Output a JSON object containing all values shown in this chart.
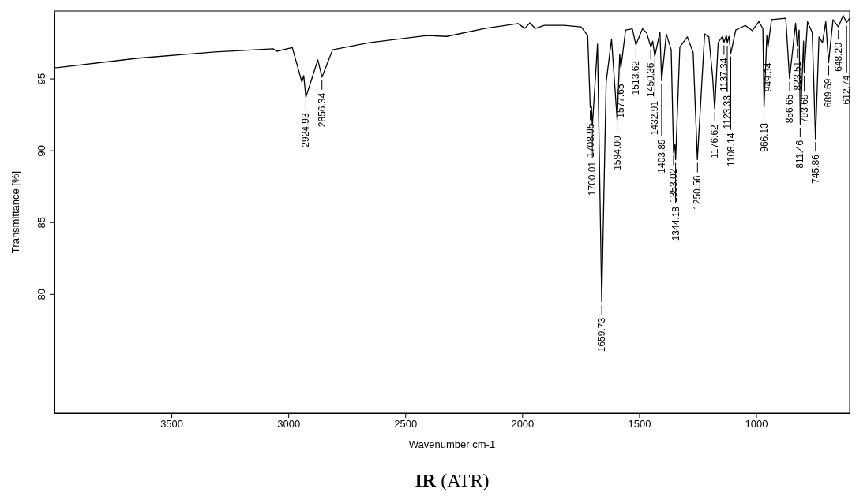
{
  "chart_data": {
    "type": "line",
    "title": "IR (ATR)",
    "xlabel": "Wavenumber cm-1",
    "ylabel": "Transmittance [%]",
    "xlim": [
      4000,
      600
    ],
    "ylim": [
      71.7,
      99.7
    ],
    "xticks": [
      3500,
      3000,
      2500,
      2000,
      1500,
      1000
    ],
    "yticks": [
      80,
      85,
      90,
      95
    ],
    "grid": false,
    "series": [
      {
        "color": "#000000",
        "x": [
          4000,
          3984,
          3642,
          3314,
          3065,
          3050,
          2983,
          2942,
          2934,
          2925,
          2874,
          2856,
          2811,
          2654,
          2406,
          2323,
          2160,
          2018,
          1989,
          1967,
          1944,
          1905,
          1822,
          1748,
          1720,
          1709,
          1704,
          1700,
          1678,
          1660,
          1641,
          1618,
          1594,
          1583,
          1578,
          1558,
          1529,
          1514,
          1486,
          1468,
          1450,
          1442,
          1433,
          1411,
          1404,
          1384,
          1363,
          1353,
          1347,
          1344,
          1326,
          1294,
          1269,
          1251,
          1220,
          1202,
          1186,
          1177,
          1162,
          1144,
          1137,
          1127,
          1123,
          1116,
          1108,
          1087,
          1046,
          1016,
          988,
          971,
          966,
          954,
          949,
          934,
          873,
          857,
          831,
          824,
          816,
          811,
          797,
          794,
          780,
          760,
          746,
          731,
          716,
          702,
          690,
          671,
          648,
          628,
          613,
          600
        ],
        "values": [
          95.75,
          95.77,
          96.42,
          96.85,
          97.07,
          96.9,
          97.15,
          94.75,
          95.2,
          93.7,
          96.3,
          95.1,
          97.0,
          97.5,
          97.99,
          97.93,
          98.48,
          98.83,
          98.5,
          98.88,
          98.48,
          98.7,
          98.7,
          98.6,
          97.99,
          92.98,
          93.08,
          91.7,
          97.4,
          79.45,
          94.75,
          97.75,
          92.1,
          96.7,
          95.73,
          98.38,
          98.46,
          97.34,
          98.46,
          98.18,
          97.2,
          97.6,
          96.55,
          98.24,
          94.85,
          98.1,
          97.0,
          89.84,
          90.4,
          89.35,
          97.2,
          97.9,
          96.8,
          89.35,
          98.1,
          97.9,
          95.14,
          92.88,
          97.5,
          97.93,
          97.53,
          98.0,
          97.5,
          97.93,
          96.75,
          98.38,
          98.7,
          98.33,
          98.97,
          98.48,
          93.0,
          98.0,
          97.2,
          99.1,
          99.2,
          95.0,
          98.85,
          97.3,
          98.38,
          91.8,
          97.6,
          95.4,
          98.95,
          98.2,
          90.8,
          97.9,
          97.5,
          98.95,
          96.1,
          99.1,
          98.6,
          99.4,
          98.9,
          99.2
        ]
      }
    ],
    "annotations": [
      {
        "text": "2924.93",
        "x": 2924.93,
        "y": 93.7
      },
      {
        "text": "2856.34",
        "x": 2856.34,
        "y": 95.1
      },
      {
        "text": "1708.95",
        "x": 1708.95,
        "y": 92.98
      },
      {
        "text": "1700.01",
        "x": 1700.01,
        "y": 91.7
      },
      {
        "text": "1659.73",
        "x": 1659.73,
        "y": 79.45
      },
      {
        "text": "1594.00",
        "x": 1594.0,
        "y": 92.1
      },
      {
        "text": "1577.65",
        "x": 1577.65,
        "y": 95.73
      },
      {
        "text": "1513.62",
        "x": 1513.62,
        "y": 97.34
      },
      {
        "text": "1450.36",
        "x": 1450.36,
        "y": 97.2
      },
      {
        "text": "1432.91",
        "x": 1432.91,
        "y": 96.55
      },
      {
        "text": "1403.89",
        "x": 1403.89,
        "y": 94.85
      },
      {
        "text": "1353.02",
        "x": 1353.02,
        "y": 89.84
      },
      {
        "text": "1344.18",
        "x": 1344.18,
        "y": 89.35
      },
      {
        "text": "1250.56",
        "x": 1250.56,
        "y": 89.35
      },
      {
        "text": "1176.62",
        "x": 1176.62,
        "y": 92.88
      },
      {
        "text": "1137.34",
        "x": 1137.34,
        "y": 97.53
      },
      {
        "text": "1123.33",
        "x": 1123.33,
        "y": 97.5
      },
      {
        "text": "1108.14",
        "x": 1108.14,
        "y": 96.75
      },
      {
        "text": "966.13",
        "x": 966.13,
        "y": 93.0
      },
      {
        "text": "949.34",
        "x": 949.34,
        "y": 97.2
      },
      {
        "text": "856.65",
        "x": 856.65,
        "y": 95.0
      },
      {
        "text": "823.51",
        "x": 823.51,
        "y": 97.3
      },
      {
        "text": "811.46",
        "x": 811.46,
        "y": 91.8
      },
      {
        "text": "793.69",
        "x": 793.69,
        "y": 95.4
      },
      {
        "text": "745.86",
        "x": 745.86,
        "y": 90.8
      },
      {
        "text": "689.69",
        "x": 689.69,
        "y": 96.1
      },
      {
        "text": "648.20",
        "x": 648.2,
        "y": 98.6
      },
      {
        "text": "612.74",
        "x": 612.74,
        "y": 98.9
      }
    ]
  }
}
